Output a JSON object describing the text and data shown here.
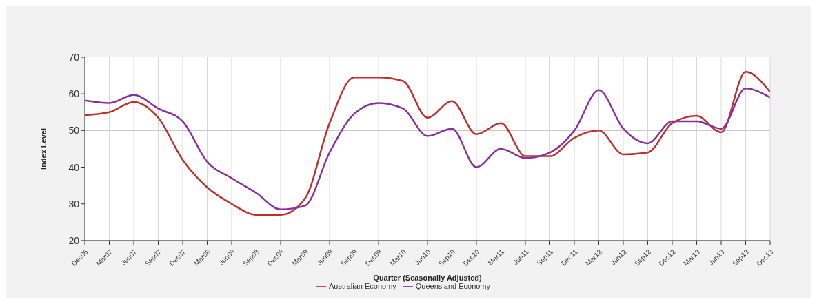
{
  "chart_data": {
    "type": "line",
    "xlabel": "Quarter (Seasonally Adjusted)",
    "ylabel": "Index Level",
    "categories": [
      "Dec06",
      "Mar07",
      "Jun07",
      "Sep07",
      "Dec07",
      "Mar08",
      "Jun08",
      "Sep08",
      "Dec08",
      "Mar09",
      "Jun09",
      "Sep09",
      "Dec09",
      "Mar10",
      "Jun10",
      "Sep10",
      "Dec10",
      "Mar11",
      "Jun11",
      "Sep11",
      "Dec11",
      "Mar12",
      "Jun12",
      "Sep12",
      "Dec12",
      "Mar13",
      "Jun13",
      "Sep13",
      "Dec13"
    ],
    "series": [
      {
        "name": "Australian Economy",
        "color": "#c0302a",
        "values": [
          54.2,
          55,
          57.8,
          53.5,
          42,
          34.5,
          30,
          27,
          27,
          31.5,
          52,
          64.5,
          64.5,
          63.5,
          53.5,
          58,
          49,
          52,
          43,
          43,
          48,
          50,
          43.5,
          44,
          52,
          54,
          49.5,
          66,
          60.5
        ]
      },
      {
        "name": "Queensland Economy",
        "color": "#8a2fa0",
        "values": [
          58.2,
          57.5,
          59.7,
          56,
          52.5,
          41.5,
          37,
          33,
          28.5,
          29.5,
          44,
          54.5,
          57.5,
          56,
          48.5,
          50.5,
          40,
          45,
          42.5,
          44,
          50,
          61,
          50.5,
          46.5,
          52.5,
          52.5,
          50.5,
          61.5,
          59
        ]
      }
    ],
    "ylim": [
      20,
      70
    ],
    "yticks": [
      20,
      30,
      40,
      50,
      60,
      70
    ],
    "grid": "x",
    "ref_lines": [
      {
        "axis": "y",
        "value": 50,
        "color": "#c8c8c8"
      }
    ],
    "legend": "bottom",
    "marker": "none",
    "line_style": "solid"
  }
}
